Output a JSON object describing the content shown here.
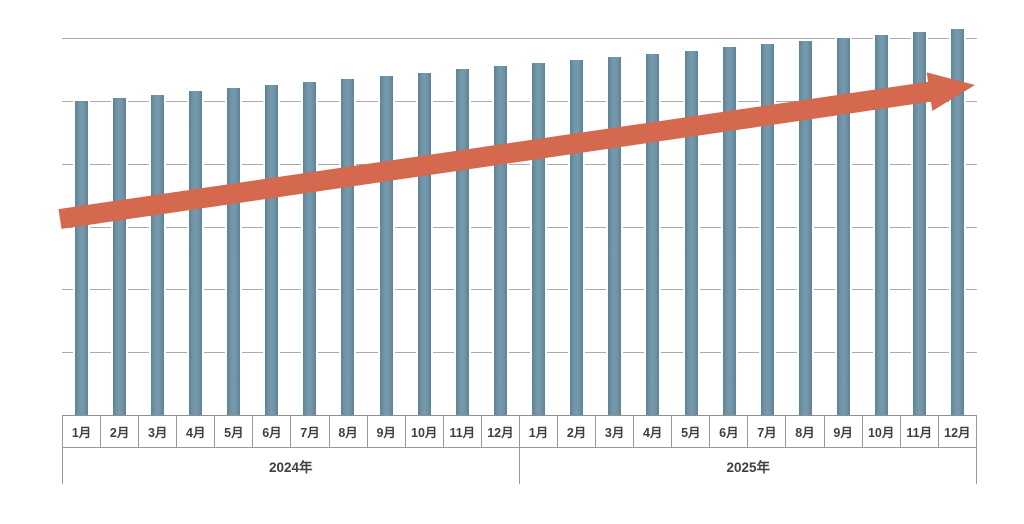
{
  "chart_data": {
    "type": "bar",
    "categories": [
      "1月",
      "2月",
      "3月",
      "4月",
      "5月",
      "6月",
      "7月",
      "8月",
      "9月",
      "10月",
      "11月",
      "12月",
      "1月",
      "2月",
      "3月",
      "4月",
      "5月",
      "6月",
      "7月",
      "8月",
      "9月",
      "10月",
      "11月",
      "12月"
    ],
    "group_labels": [
      "2024年",
      "2025年"
    ],
    "values": [
      100,
      101,
      102,
      103,
      104,
      105,
      106,
      107,
      108,
      109,
      110,
      111,
      112,
      113,
      114,
      115,
      116,
      117,
      118,
      119,
      120,
      121,
      122,
      123
    ],
    "ylim": [
      0,
      120
    ],
    "grid_divisions": 6,
    "grid": true,
    "legend_position": "none",
    "bar_color": "#6f94a8",
    "bar_edge_color": "#5d8296",
    "grid_color": "#ababab",
    "axis_border_color": "#999999",
    "label_color": "#3f3f3f",
    "annotation_arrow": {
      "color": "#d5694f"
    }
  }
}
